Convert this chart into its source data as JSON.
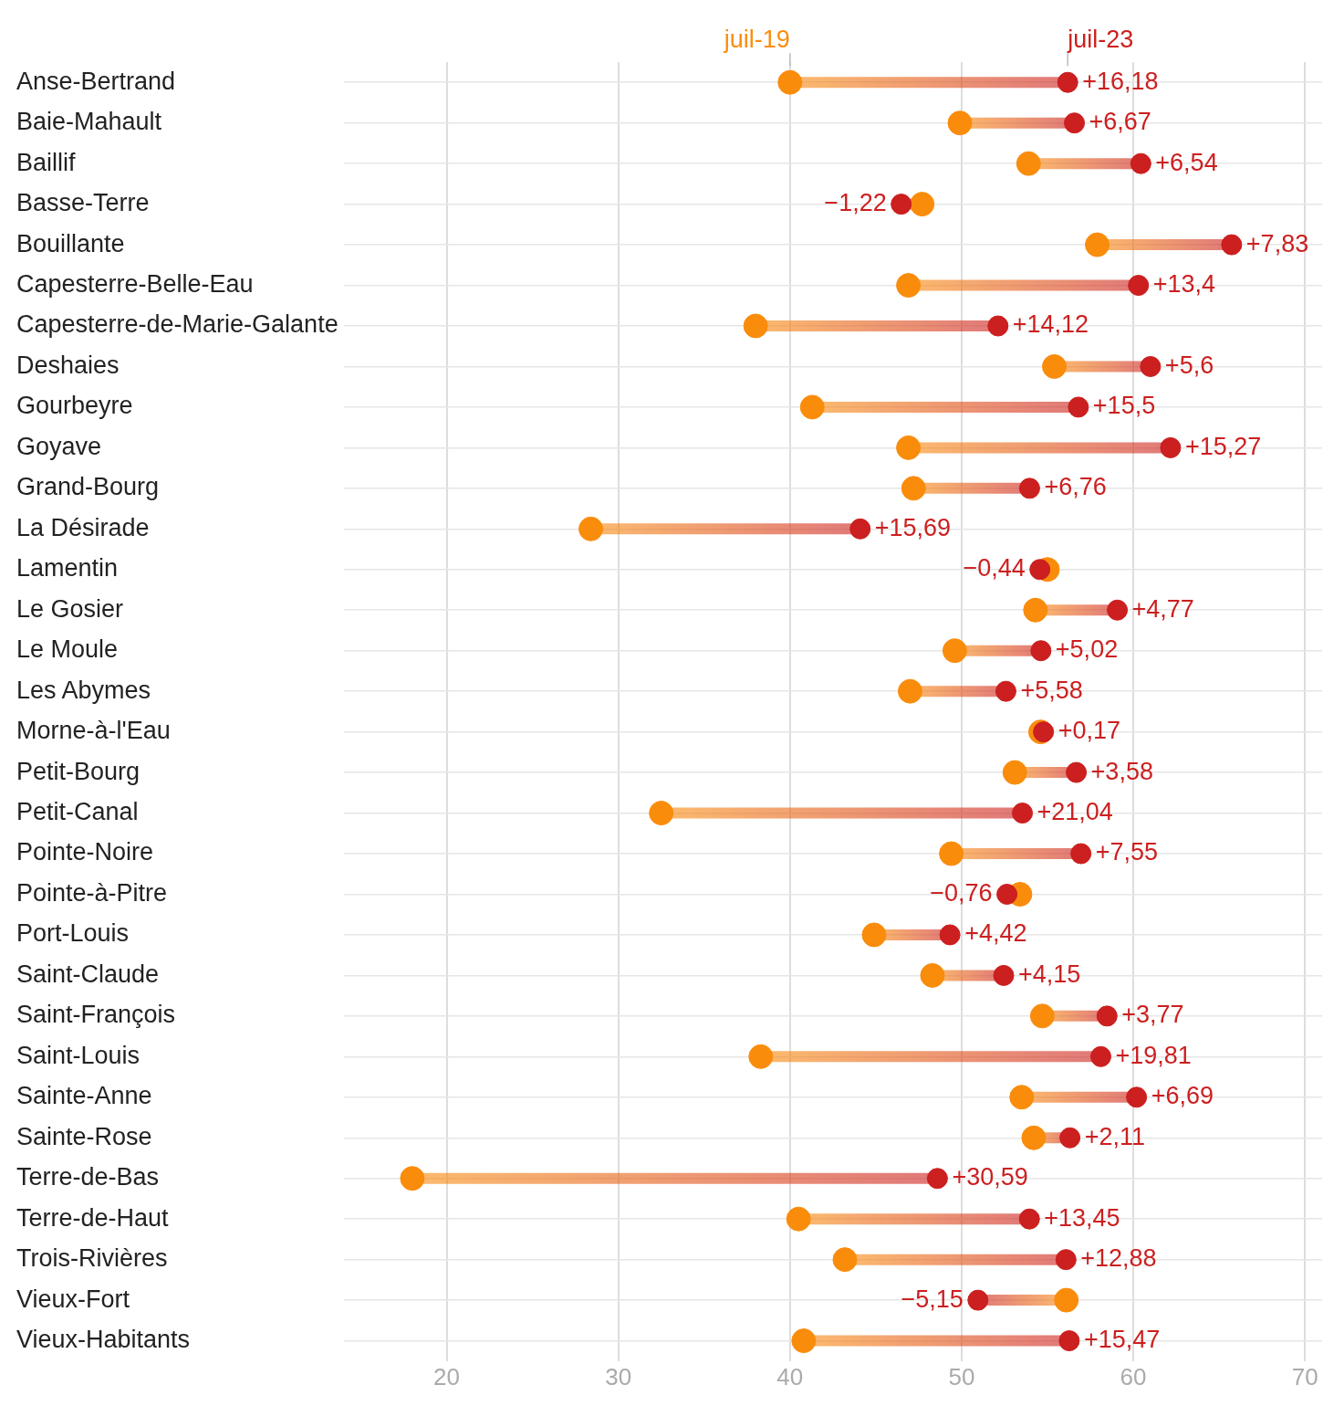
{
  "chart_data": {
    "type": "scatter",
    "orientation": "horizontal",
    "categories": [
      "Anse-Bertrand",
      "Baie-Mahault",
      "Baillif",
      "Basse-Terre",
      "Bouillante",
      "Capesterre-Belle-Eau",
      "Capesterre-de-Marie-Galante",
      "Deshaies",
      "Gourbeyre",
      "Goyave",
      "Grand-Bourg",
      "La Désirade",
      "Lamentin",
      "Le Gosier",
      "Le Moule",
      "Les Abymes",
      "Morne-à-l'Eau",
      "Petit-Bourg",
      "Petit-Canal",
      "Pointe-Noire",
      "Pointe-à-Pitre",
      "Port-Louis",
      "Saint-Claude",
      "Saint-François",
      "Saint-Louis",
      "Sainte-Anne",
      "Sainte-Rose",
      "Terre-de-Bas",
      "Terre-de-Haut",
      "Trois-Rivières",
      "Vieux-Fort",
      "Vieux-Habitants"
    ],
    "series": [
      {
        "name": "juil-19",
        "color": "#fa8c0c",
        "values": [
          40.0,
          49.9,
          53.9,
          47.7,
          57.9,
          46.9,
          38.0,
          55.4,
          41.3,
          46.9,
          47.2,
          28.4,
          55.0,
          54.3,
          49.6,
          47.0,
          54.6,
          53.1,
          32.5,
          49.4,
          53.4,
          44.9,
          48.3,
          54.7,
          38.3,
          53.5,
          54.2,
          18.0,
          40.5,
          43.2,
          56.1,
          40.8
        ]
      },
      {
        "name": "juil-23",
        "color": "#cc1f1f",
        "values": [
          56.18,
          56.57,
          60.44,
          46.48,
          65.73,
          60.3,
          52.12,
          61.0,
          56.8,
          62.17,
          53.96,
          44.09,
          54.56,
          59.07,
          54.62,
          52.58,
          54.77,
          56.68,
          53.54,
          56.95,
          52.64,
          49.32,
          52.45,
          58.47,
          58.11,
          60.19,
          56.31,
          48.59,
          53.95,
          56.08,
          50.95,
          56.27
        ]
      }
    ],
    "annotations": [
      {
        "text": "+16,18",
        "x": 56.18,
        "y": "Anse-Bertrand"
      },
      {
        "text": "+6,67",
        "x": 56.57,
        "y": "Baie-Mahault"
      },
      {
        "text": "+6,54",
        "x": 60.44,
        "y": "Baillif"
      },
      {
        "text": "−1,22",
        "x": 46.48,
        "y": "Basse-Terre"
      },
      {
        "text": "+7,83",
        "x": 65.73,
        "y": "Bouillante"
      },
      {
        "text": "+13,4",
        "x": 60.3,
        "y": "Capesterre-Belle-Eau"
      },
      {
        "text": "+14,12",
        "x": 52.12,
        "y": "Capesterre-de-Marie-Galante"
      },
      {
        "text": "+5,6",
        "x": 61.0,
        "y": "Deshaies"
      },
      {
        "text": "+15,5",
        "x": 56.8,
        "y": "Gourbeyre"
      },
      {
        "text": "+15,27",
        "x": 62.17,
        "y": "Goyave"
      },
      {
        "text": "+6,76",
        "x": 53.96,
        "y": "Grand-Bourg"
      },
      {
        "text": "+15,69",
        "x": 44.09,
        "y": "La Désirade"
      },
      {
        "text": "−0,44",
        "x": 54.56,
        "y": "Lamentin"
      },
      {
        "text": "+4,77",
        "x": 59.07,
        "y": "Le Gosier"
      },
      {
        "text": "+5,02",
        "x": 54.62,
        "y": "Le Moule"
      },
      {
        "text": "+5,58",
        "x": 52.58,
        "y": "Les Abymes"
      },
      {
        "text": "+0,17",
        "x": 54.77,
        "y": "Morne-à-l'Eau"
      },
      {
        "text": "+3,58",
        "x": 56.68,
        "y": "Petit-Bourg"
      },
      {
        "text": "+21,04",
        "x": 53.54,
        "y": "Petit-Canal"
      },
      {
        "text": "+7,55",
        "x": 56.95,
        "y": "Pointe-Noire"
      },
      {
        "text": "−0,76",
        "x": 52.64,
        "y": "Pointe-à-Pitre"
      },
      {
        "text": "+4,42",
        "x": 49.32,
        "y": "Port-Louis"
      },
      {
        "text": "+4,15",
        "x": 52.45,
        "y": "Saint-Claude"
      },
      {
        "text": "+3,77",
        "x": 58.47,
        "y": "Saint-François"
      },
      {
        "text": "+19,81",
        "x": 58.11,
        "y": "Saint-Louis"
      },
      {
        "text": "+6,69",
        "x": 60.19,
        "y": "Sainte-Anne"
      },
      {
        "text": "+2,11",
        "x": 56.31,
        "y": "Sainte-Rose"
      },
      {
        "text": "+30,59",
        "x": 48.59,
        "y": "Terre-de-Bas"
      },
      {
        "text": "+13,45",
        "x": 53.95,
        "y": "Terre-de-Haut"
      },
      {
        "text": "+12,88",
        "x": 56.08,
        "y": "Trois-Rivières"
      },
      {
        "text": "−5,15",
        "x": 50.95,
        "y": "Vieux-Fort"
      },
      {
        "text": "+15,47",
        "x": 56.27,
        "y": "Vieux-Habitants"
      }
    ],
    "xlim": [
      14,
      71
    ],
    "xticks": [
      20,
      30,
      40,
      50,
      60,
      70
    ],
    "grid": true,
    "marker": "circle"
  }
}
